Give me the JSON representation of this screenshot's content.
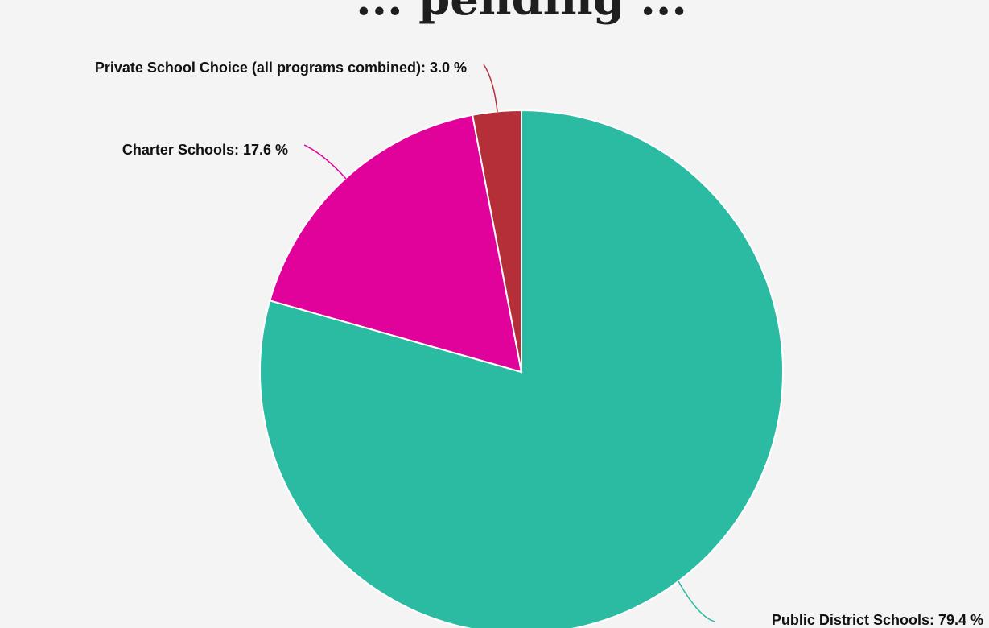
{
  "chart_data": {
    "type": "pie",
    "title": "... pending ...",
    "unit": "%",
    "start_angle_deg": 0,
    "direction": "clockwise",
    "slices": [
      {
        "label": "Public District Schools",
        "value": 79.4,
        "color": "#2bbaa2",
        "display": "Public District Schools: 79.4 %"
      },
      {
        "label": "Charter Schools",
        "value": 17.6,
        "color": "#e0029b",
        "display": "Charter Schools: 17.6 %"
      },
      {
        "label": "Private School Choice (all programs combined)",
        "value": 3.0,
        "color": "#b52f39",
        "display": "Private School Choice (all programs combined): 3.0 %"
      }
    ],
    "legend": "none",
    "background": "#f4f4f4"
  }
}
